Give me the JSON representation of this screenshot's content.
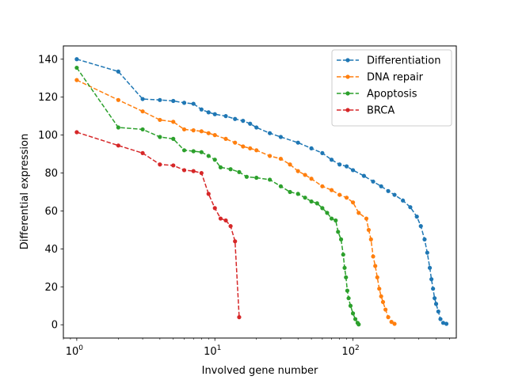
{
  "chart_data": {
    "type": "line",
    "xlabel": "Involved gene number",
    "ylabel": "Differential expression",
    "x_scale": "log",
    "xlim": [
      0.8,
      560
    ],
    "ylim": [
      -7,
      147
    ],
    "grid": false,
    "legend_position": "top-right",
    "x_ticks": [
      {
        "value": 1,
        "base": "10",
        "exp": "0"
      },
      {
        "value": 10,
        "base": "10",
        "exp": "1"
      },
      {
        "value": 100,
        "base": "10",
        "exp": "2"
      }
    ],
    "y_ticks": [
      "0",
      "20",
      "40",
      "60",
      "80",
      "100",
      "120",
      "140"
    ],
    "series": [
      {
        "name": "Differentiation",
        "color": "#1f77b4",
        "points": [
          [
            1,
            140
          ],
          [
            2,
            133.5
          ],
          [
            3,
            119
          ],
          [
            4,
            118.5
          ],
          [
            5,
            118
          ],
          [
            6,
            117
          ],
          [
            7,
            116.5
          ],
          [
            8,
            113.5
          ],
          [
            9,
            112
          ],
          [
            10,
            111
          ],
          [
            12,
            110
          ],
          [
            14,
            108.5
          ],
          [
            16,
            107.5
          ],
          [
            18,
            106
          ],
          [
            20,
            104
          ],
          [
            25,
            101
          ],
          [
            30,
            99
          ],
          [
            40,
            96
          ],
          [
            50,
            93
          ],
          [
            60,
            90.5
          ],
          [
            70,
            87
          ],
          [
            80,
            84.5
          ],
          [
            90,
            83.5
          ],
          [
            100,
            81.5
          ],
          [
            120,
            78.5
          ],
          [
            140,
            75.5
          ],
          [
            160,
            73
          ],
          [
            180,
            70.5
          ],
          [
            200,
            68.5
          ],
          [
            230,
            65.5
          ],
          [
            260,
            62
          ],
          [
            290,
            57
          ],
          [
            310,
            52
          ],
          [
            330,
            45
          ],
          [
            345,
            38
          ],
          [
            360,
            30
          ],
          [
            370,
            24
          ],
          [
            380,
            19
          ],
          [
            390,
            14
          ],
          [
            400,
            11
          ],
          [
            415,
            7
          ],
          [
            430,
            3
          ],
          [
            450,
            1
          ],
          [
            475,
            0.5
          ]
        ]
      },
      {
        "name": "DNA repair",
        "color": "#ff7f0e",
        "points": [
          [
            1,
            129
          ],
          [
            2,
            118.5
          ],
          [
            3,
            112.5
          ],
          [
            4,
            108
          ],
          [
            5,
            107
          ],
          [
            6,
            103
          ],
          [
            7,
            102.5
          ],
          [
            8,
            102
          ],
          [
            9,
            101
          ],
          [
            10,
            100
          ],
          [
            12,
            98
          ],
          [
            14,
            96
          ],
          [
            16,
            94
          ],
          [
            18,
            93
          ],
          [
            20,
            92
          ],
          [
            25,
            89
          ],
          [
            30,
            87.5
          ],
          [
            35,
            84.5
          ],
          [
            40,
            81
          ],
          [
            45,
            79
          ],
          [
            50,
            77
          ],
          [
            60,
            73
          ],
          [
            70,
            71
          ],
          [
            80,
            68.5
          ],
          [
            90,
            67
          ],
          [
            100,
            64.5
          ],
          [
            110,
            59
          ],
          [
            125,
            56
          ],
          [
            130,
            50
          ],
          [
            135,
            45
          ],
          [
            140,
            36
          ],
          [
            145,
            31
          ],
          [
            150,
            25
          ],
          [
            155,
            19
          ],
          [
            160,
            15
          ],
          [
            165,
            12
          ],
          [
            172,
            8
          ],
          [
            180,
            4
          ],
          [
            190,
            1.5
          ],
          [
            200,
            0.5
          ]
        ]
      },
      {
        "name": "Apoptosis",
        "color": "#2ca02c",
        "points": [
          [
            1,
            135.5
          ],
          [
            2,
            104
          ],
          [
            3,
            103
          ],
          [
            4,
            99
          ],
          [
            5,
            98
          ],
          [
            6,
            92
          ],
          [
            7,
            91.5
          ],
          [
            8,
            91
          ],
          [
            9,
            89
          ],
          [
            10,
            87
          ],
          [
            11,
            83
          ],
          [
            13,
            82
          ],
          [
            15,
            80.5
          ],
          [
            17,
            78
          ],
          [
            20,
            77.5
          ],
          [
            25,
            76.5
          ],
          [
            30,
            73
          ],
          [
            35,
            70
          ],
          [
            40,
            69
          ],
          [
            45,
            67
          ],
          [
            50,
            65
          ],
          [
            55,
            64
          ],
          [
            60,
            61.5
          ],
          [
            65,
            59
          ],
          [
            70,
            56
          ],
          [
            75,
            55
          ],
          [
            78,
            49
          ],
          [
            82,
            45
          ],
          [
            85,
            37
          ],
          [
            87,
            30
          ],
          [
            89,
            25
          ],
          [
            91,
            18
          ],
          [
            93,
            14
          ],
          [
            96,
            10
          ],
          [
            100,
            6
          ],
          [
            104,
            3
          ],
          [
            108,
            1
          ],
          [
            110,
            0.2
          ]
        ]
      },
      {
        "name": "BRCA",
        "color": "#d62728",
        "points": [
          [
            1,
            101.5
          ],
          [
            2,
            94.5
          ],
          [
            3,
            90.5
          ],
          [
            4,
            84.5
          ],
          [
            5,
            84
          ],
          [
            6,
            81.5
          ],
          [
            7,
            81
          ],
          [
            8,
            80
          ],
          [
            9,
            69
          ],
          [
            10,
            61.5
          ],
          [
            11,
            56
          ],
          [
            12,
            55
          ],
          [
            13,
            52
          ],
          [
            14,
            44
          ],
          [
            15,
            4
          ]
        ]
      }
    ]
  }
}
